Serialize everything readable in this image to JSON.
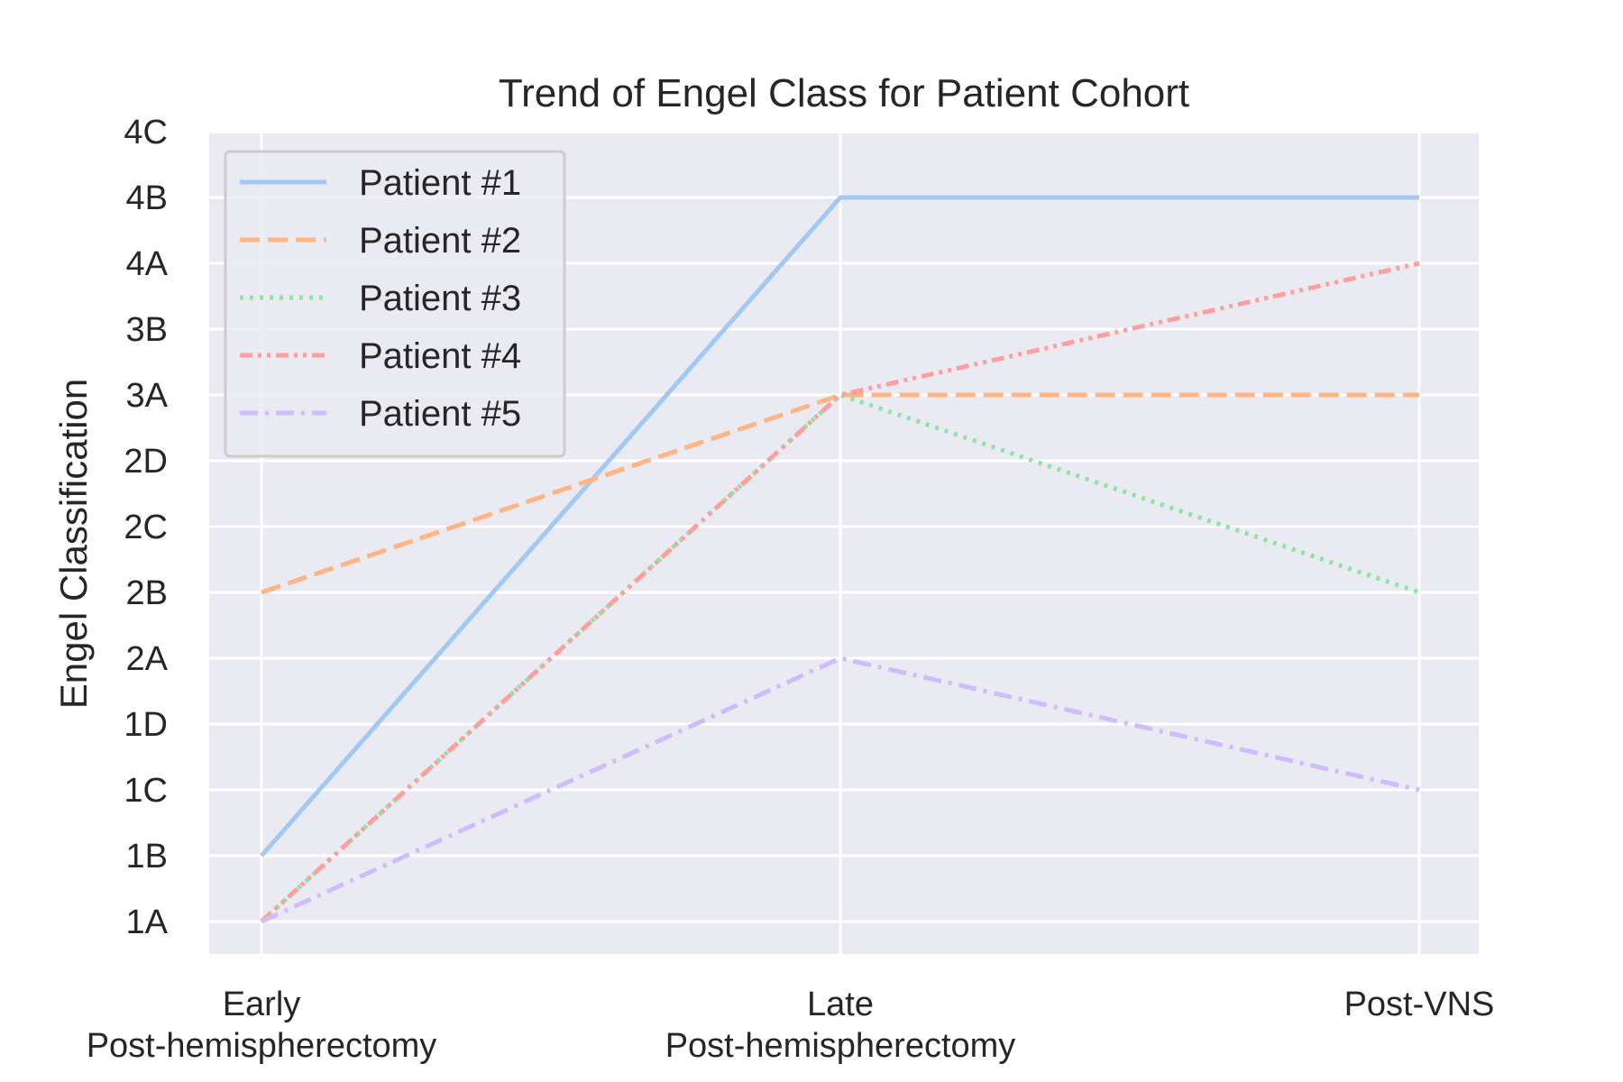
{
  "chart_data": {
    "type": "line",
    "title": "Trend of Engel Class for Patient Cohort",
    "xlabel": "",
    "ylabel": "Engel Classification",
    "categories": [
      [
        "Early",
        "Post-hemispherectomy"
      ],
      [
        "Late",
        "Post-hemispherectomy"
      ],
      [
        "Post-VNS"
      ]
    ],
    "y_ticks": [
      "1A",
      "1B",
      "1C",
      "1D",
      "2A",
      "2B",
      "2C",
      "2D",
      "3A",
      "3B",
      "4A",
      "4B",
      "4C"
    ],
    "ylim": [
      "1A",
      "4C"
    ],
    "grid": true,
    "legend_position": "top-left",
    "series": [
      {
        "name": "Patient #1",
        "values": [
          "1B",
          "4B",
          "4B"
        ],
        "color": "#a1c9f4",
        "dash": "solid"
      },
      {
        "name": "Patient #2",
        "values": [
          "2B",
          "3A",
          "3A"
        ],
        "color": "#ffb482",
        "dash": "dashed"
      },
      {
        "name": "Patient #3",
        "values": [
          "1A",
          "3A",
          "2B"
        ],
        "color": "#8de5a1",
        "dash": "dotted"
      },
      {
        "name": "Patient #4",
        "values": [
          "1A",
          "3A",
          "4A"
        ],
        "color": "#ff9f9b",
        "dash": "dash-dot-dot"
      },
      {
        "name": "Patient #5",
        "values": [
          "1A",
          "2A",
          "1C"
        ],
        "color": "#d0bbff",
        "dash": "dash-dot"
      }
    ],
    "colors": {
      "plot_background": "#eaeaf2",
      "grid": "#ffffff",
      "text": "#262626"
    }
  }
}
